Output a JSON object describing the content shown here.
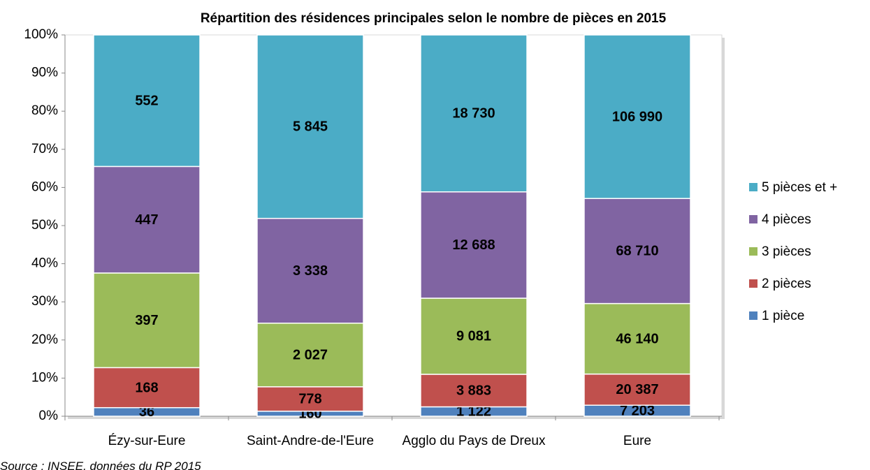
{
  "chart_data": {
    "type": "stacked_bar_percent",
    "title": "Répartition des résidences principales selon le nombre de pièces en 2015",
    "categories": [
      "Ézy-sur-Eure",
      "Saint-Andre-de-l'Eure",
      "Agglo du Pays de Dreux",
      "Eure"
    ],
    "series": [
      {
        "name": "1 pièce",
        "color": "#4f81bd",
        "values": [
          36,
          160,
          1122,
          7203
        ],
        "value_labels": [
          "36",
          "160",
          "1 122",
          "7 203"
        ]
      },
      {
        "name": "2 pièces",
        "color": "#c0504d",
        "values": [
          168,
          778,
          3883,
          20387
        ],
        "value_labels": [
          "168",
          "778",
          "3 883",
          "20 387"
        ]
      },
      {
        "name": "3 pièces",
        "color": "#9bbb59",
        "values": [
          397,
          2027,
          9081,
          46140
        ],
        "value_labels": [
          "397",
          "2 027",
          "9 081",
          "46 140"
        ]
      },
      {
        "name": "4 pièces",
        "color": "#8064a2",
        "values": [
          447,
          3338,
          12688,
          68710
        ],
        "value_labels": [
          "447",
          "3 338",
          "12 688",
          "68 710"
        ]
      },
      {
        "name": "5 pièces et +",
        "color": "#4bacc6",
        "values": [
          552,
          5845,
          18730,
          106990
        ],
        "value_labels": [
          "552",
          "5 845",
          "18 730",
          "106 990"
        ]
      }
    ],
    "ylim": [
      0,
      100
    ],
    "yticks": [
      {
        "value": 0,
        "label": "0%"
      },
      {
        "value": 10,
        "label": "10%"
      },
      {
        "value": 20,
        "label": "20%"
      },
      {
        "value": 30,
        "label": "30%"
      },
      {
        "value": 40,
        "label": "40%"
      },
      {
        "value": 50,
        "label": "50%"
      },
      {
        "value": 60,
        "label": "60%"
      },
      {
        "value": 70,
        "label": "70%"
      },
      {
        "value": 80,
        "label": "80%"
      },
      {
        "value": 90,
        "label": "90%"
      },
      {
        "value": 100,
        "label": "100%"
      }
    ],
    "legend": "right",
    "source": "Source : INSEE, données du RP 2015"
  }
}
